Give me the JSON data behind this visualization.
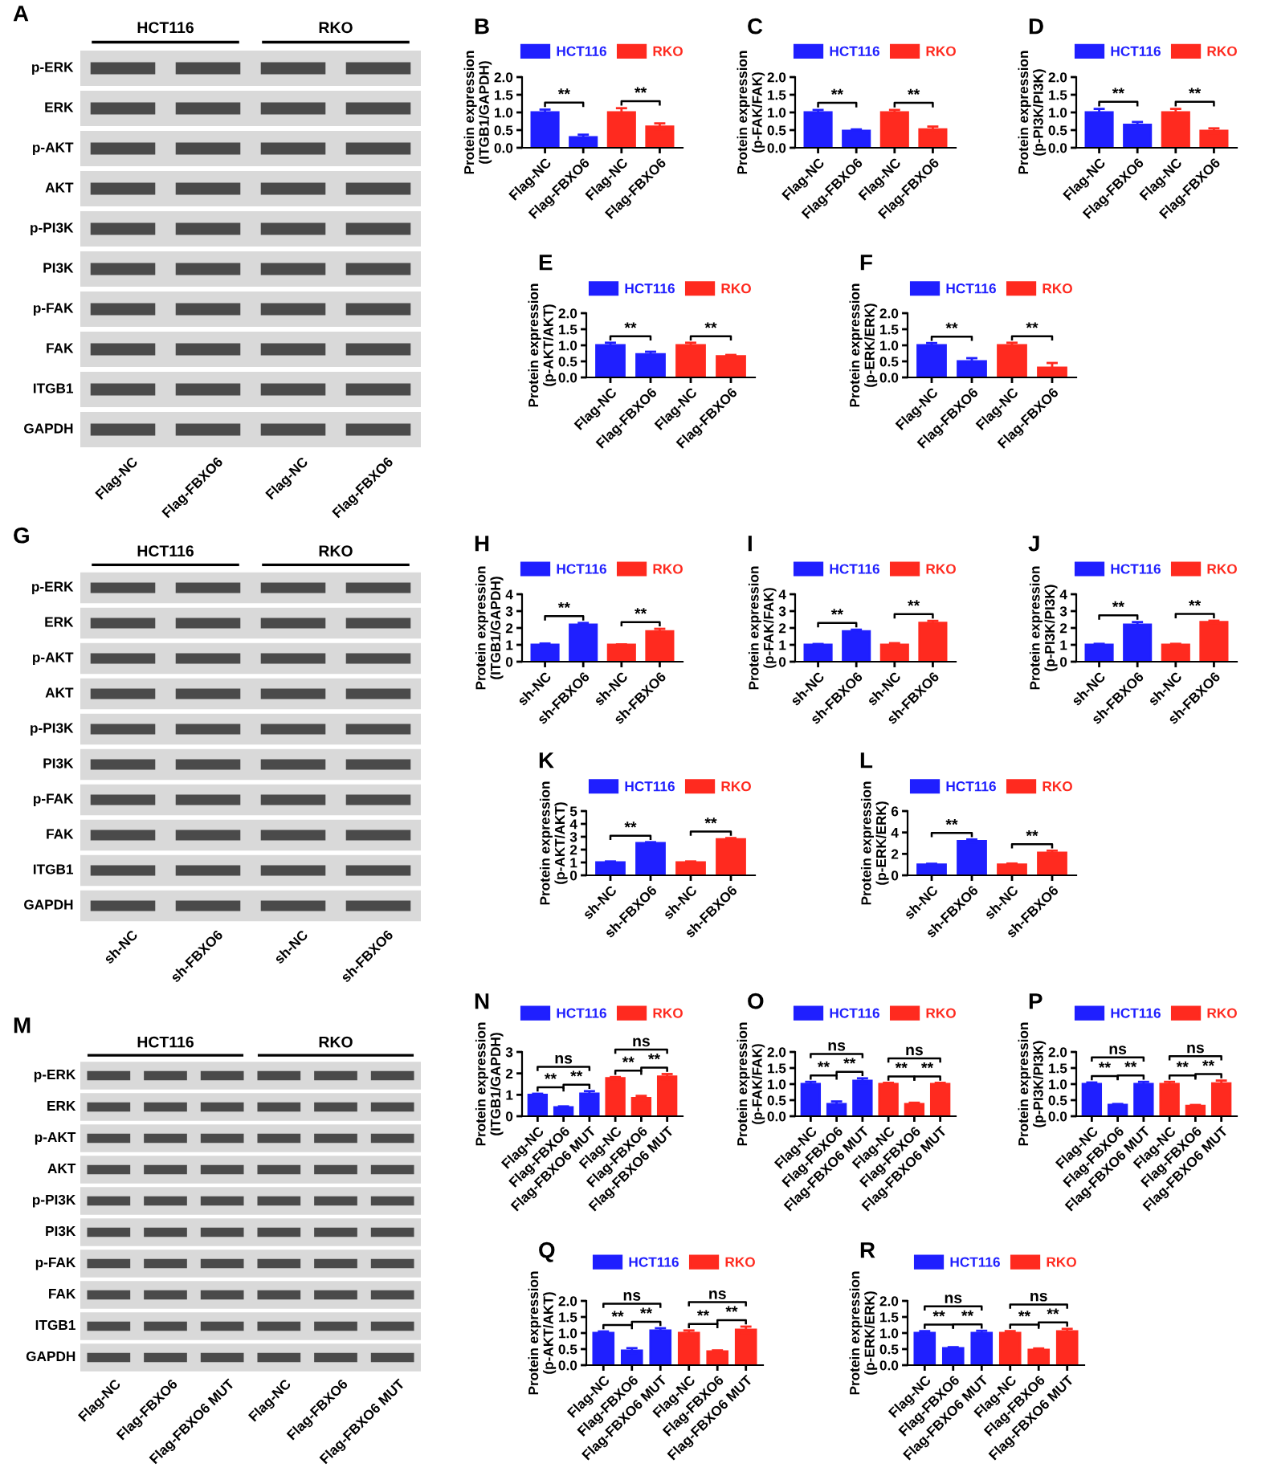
{
  "chart_data": [
    {
      "type": "other",
      "title": "A",
      "categories": [
        "Flag-NC",
        "Flag-FBXO6",
        "Flag-NC",
        "Flag-FBXO6"
      ],
      "y_categories": [
        "p-ERK",
        "ERK",
        "p-AKT",
        "AKT",
        "p-PI3K",
        "PI3K",
        "p-FAK",
        "FAK",
        "ITGB1",
        "GAPDH"
      ],
      "annotations": [
        "HCT116",
        "RKO"
      ]
    },
    {
      "type": "bar",
      "title": "B",
      "ylabel": "Protein expression\n(ITGB1/GAPDH)",
      "categories": [
        "Flag-NC",
        "Flag-FBXO6",
        "Flag-NC",
        "Flag-FBXO6"
      ],
      "legend": "top",
      "ylim": [
        0,
        2
      ],
      "yticks": [
        {
          "value": 0,
          "label": "0.0"
        },
        {
          "value": 0.5,
          "label": "0.5"
        },
        {
          "value": 1,
          "label": "1.0"
        },
        {
          "value": 1.5,
          "label": "1.5"
        },
        {
          "value": 2,
          "label": "2.0"
        }
      ],
      "annotations": [
        "**",
        "**"
      ],
      "series": [
        {
          "name": "HCT116",
          "color": "#1f1fff",
          "values": [
            1.0,
            0.3,
            null,
            null
          ],
          "errors": [
            0.08,
            0.07,
            null,
            null
          ]
        },
        {
          "name": "RKO",
          "color": "#ff2a1f",
          "values": [
            null,
            null,
            1.0,
            0.6
          ],
          "errors": [
            null,
            null,
            0.12,
            0.09
          ]
        }
      ]
    },
    {
      "type": "bar",
      "title": "C",
      "ylabel": "Protein expression\n(p-FAK/FAK)",
      "categories": [
        "Flag-NC",
        "Flag-FBXO6",
        "Flag-NC",
        "Flag-FBXO6"
      ],
      "legend": "top",
      "ylim": [
        0,
        2
      ],
      "yticks": [
        {
          "value": 0,
          "label": "0.0"
        },
        {
          "value": 0.5,
          "label": "0.5"
        },
        {
          "value": 1,
          "label": "1.0"
        },
        {
          "value": 1.5,
          "label": "1.5"
        },
        {
          "value": 2,
          "label": "2.0"
        }
      ],
      "annotations": [
        "**",
        "**"
      ],
      "series": [
        {
          "name": "HCT116",
          "color": "#1f1fff",
          "values": [
            1.0,
            0.48,
            null,
            null
          ],
          "errors": [
            0.07,
            0.04,
            null,
            null
          ]
        },
        {
          "name": "RKO",
          "color": "#ff2a1f",
          "values": [
            null,
            null,
            1.0,
            0.52
          ],
          "errors": [
            null,
            null,
            0.07,
            0.08
          ]
        }
      ]
    },
    {
      "type": "bar",
      "title": "D",
      "ylabel": "Protein expression\n(p-PI3K/PI3K)",
      "categories": [
        "Flag-NC",
        "Flag-FBXO6",
        "Flag-NC",
        "Flag-FBXO6"
      ],
      "legend": "top",
      "ylim": [
        0,
        2
      ],
      "yticks": [
        {
          "value": 0,
          "label": "0.0"
        },
        {
          "value": 0.5,
          "label": "0.5"
        },
        {
          "value": 1,
          "label": "1.0"
        },
        {
          "value": 1.5,
          "label": "1.5"
        },
        {
          "value": 2,
          "label": "2.0"
        }
      ],
      "annotations": [
        "**",
        "**"
      ],
      "series": [
        {
          "name": "HCT116",
          "color": "#1f1fff",
          "values": [
            1.0,
            0.65,
            null,
            null
          ],
          "errors": [
            0.1,
            0.08,
            null,
            null
          ]
        },
        {
          "name": "RKO",
          "color": "#ff2a1f",
          "values": [
            null,
            null,
            1.0,
            0.48
          ],
          "errors": [
            null,
            null,
            0.1,
            0.07
          ]
        }
      ]
    },
    {
      "type": "bar",
      "title": "E",
      "ylabel": "Protein expression\n(p-AKT/AKT)",
      "categories": [
        "Flag-NC",
        "Flag-FBXO6",
        "Flag-NC",
        "Flag-FBXO6"
      ],
      "legend": "top",
      "ylim": [
        0,
        2
      ],
      "yticks": [
        {
          "value": 0,
          "label": "0.0"
        },
        {
          "value": 0.5,
          "label": "0.5"
        },
        {
          "value": 1,
          "label": "1.0"
        },
        {
          "value": 1.5,
          "label": "1.5"
        },
        {
          "value": 2,
          "label": "2.0"
        }
      ],
      "annotations": [
        "**",
        "**"
      ],
      "series": [
        {
          "name": "HCT116",
          "color": "#1f1fff",
          "values": [
            1.0,
            0.72,
            null,
            null
          ],
          "errors": [
            0.08,
            0.08,
            null,
            null
          ]
        },
        {
          "name": "RKO",
          "color": "#ff2a1f",
          "values": [
            null,
            null,
            1.0,
            0.66
          ],
          "errors": [
            null,
            null,
            0.08,
            0.04
          ]
        }
      ]
    },
    {
      "type": "bar",
      "title": "F",
      "ylabel": "Protein expression\n(p-ERK/ERK)",
      "categories": [
        "Flag-NC",
        "Flag-FBXO6",
        "Flag-NC",
        "Flag-FBXO6"
      ],
      "legend": "top",
      "ylim": [
        0,
        2
      ],
      "yticks": [
        {
          "value": 0,
          "label": "0.0"
        },
        {
          "value": 0.5,
          "label": "0.5"
        },
        {
          "value": 1,
          "label": "1.0"
        },
        {
          "value": 1.5,
          "label": "1.5"
        },
        {
          "value": 2,
          "label": "2.0"
        }
      ],
      "annotations": [
        "**",
        "**"
      ],
      "series": [
        {
          "name": "HCT116",
          "color": "#1f1fff",
          "values": [
            1.0,
            0.5,
            null,
            null
          ],
          "errors": [
            0.07,
            0.1,
            null,
            null
          ]
        },
        {
          "name": "RKO",
          "color": "#ff2a1f",
          "values": [
            null,
            null,
            1.0,
            0.3
          ],
          "errors": [
            null,
            null,
            0.08,
            0.15
          ]
        }
      ]
    },
    {
      "type": "other",
      "title": "G",
      "categories": [
        "sh-NC",
        "sh-FBXO6",
        "sh-NC",
        "sh-FBXO6"
      ],
      "y_categories": [
        "p-ERK",
        "ERK",
        "p-AKT",
        "AKT",
        "p-PI3K",
        "PI3K",
        "p-FAK",
        "FAK",
        "ITGB1",
        "GAPDH"
      ],
      "annotations": [
        "HCT116",
        "RKO"
      ]
    },
    {
      "type": "bar",
      "title": "H",
      "ylabel": "Protein expression\n(ITGB1/GAPDH)",
      "categories": [
        "sh-NC",
        "sh-FBXO6",
        "sh-NC",
        "sh-FBXO6"
      ],
      "legend": "top",
      "ylim": [
        0,
        4
      ],
      "yticks": [
        0,
        1,
        2,
        3,
        4
      ],
      "annotations": [
        "**",
        "**"
      ],
      "series": [
        {
          "name": "HCT116",
          "color": "#1f1fff",
          "values": [
            1.0,
            2.2,
            null,
            null
          ],
          "errors": [
            0.08,
            0.1,
            null,
            null
          ]
        },
        {
          "name": "RKO",
          "color": "#ff2a1f",
          "values": [
            null,
            null,
            1.0,
            1.8
          ],
          "errors": [
            null,
            null,
            0.03,
            0.15
          ]
        }
      ]
    },
    {
      "type": "bar",
      "title": "I",
      "ylabel": "Protein expression\n(p-FAK/FAK)",
      "categories": [
        "sh-NC",
        "sh-FBXO6",
        "sh-NC",
        "sh-FBXO6"
      ],
      "legend": "top",
      "ylim": [
        0,
        4
      ],
      "yticks": [
        0,
        1,
        2,
        3,
        4
      ],
      "annotations": [
        "**",
        "**"
      ],
      "series": [
        {
          "name": "HCT116",
          "color": "#1f1fff",
          "values": [
            1.0,
            1.8,
            null,
            null
          ],
          "errors": [
            0.05,
            0.1,
            null,
            null
          ]
        },
        {
          "name": "RKO",
          "color": "#ff2a1f",
          "values": [
            null,
            null,
            1.0,
            2.3
          ],
          "errors": [
            null,
            null,
            0.1,
            0.12
          ]
        }
      ]
    },
    {
      "type": "bar",
      "title": "J",
      "ylabel": "Protein expression\n(p-PI3K/PI3K)",
      "categories": [
        "sh-NC",
        "sh-FBXO6",
        "sh-NC",
        "sh-FBXO6"
      ],
      "legend": "top",
      "ylim": [
        0,
        4
      ],
      "yticks": [
        0,
        1,
        2,
        3,
        4
      ],
      "annotations": [
        "**",
        "**"
      ],
      "series": [
        {
          "name": "HCT116",
          "color": "#1f1fff",
          "values": [
            1.0,
            2.2,
            null,
            null
          ],
          "errors": [
            0.06,
            0.15,
            null,
            null
          ]
        },
        {
          "name": "RKO",
          "color": "#ff2a1f",
          "values": [
            null,
            null,
            1.0,
            2.35
          ],
          "errors": [
            null,
            null,
            0.06,
            0.08
          ]
        }
      ]
    },
    {
      "type": "bar",
      "title": "K",
      "ylabel": "Protein expression\n(p-AKT/AKT)",
      "categories": [
        "sh-NC",
        "sh-FBXO6",
        "sh-NC",
        "sh-FBXO6"
      ],
      "legend": "top",
      "ylim": [
        0,
        5
      ],
      "yticks": [
        0,
        1,
        2,
        3,
        4,
        5
      ],
      "annotations": [
        "**",
        "**"
      ],
      "series": [
        {
          "name": "HCT116",
          "color": "#1f1fff",
          "values": [
            1.0,
            2.5,
            null,
            null
          ],
          "errors": [
            0.08,
            0.08,
            null,
            null
          ]
        },
        {
          "name": "RKO",
          "color": "#ff2a1f",
          "values": [
            null,
            null,
            1.0,
            2.8
          ],
          "errors": [
            null,
            null,
            0.08,
            0.1
          ]
        }
      ]
    },
    {
      "type": "bar",
      "title": "L",
      "ylabel": "Protein expression\n(p-ERK/ERK)",
      "categories": [
        "sh-NC",
        "sh-FBXO6",
        "sh-NC",
        "sh-FBXO6"
      ],
      "legend": "top",
      "ylim": [
        0,
        6
      ],
      "yticks": [
        0,
        2,
        4,
        6
      ],
      "annotations": [
        "**",
        "**"
      ],
      "series": [
        {
          "name": "HCT116",
          "color": "#1f1fff",
          "values": [
            1.0,
            3.2,
            null,
            null
          ],
          "errors": [
            0.08,
            0.15,
            null,
            null
          ]
        },
        {
          "name": "RKO",
          "color": "#ff2a1f",
          "values": [
            null,
            null,
            1.0,
            2.1
          ],
          "errors": [
            null,
            null,
            0.1,
            0.2
          ]
        }
      ]
    },
    {
      "type": "other",
      "title": "M",
      "categories": [
        "Flag-NC",
        "Flag-FBXO6",
        "Flag-FBXO6 MUT",
        "Flag-NC",
        "Flag-FBXO6",
        "Flag-FBXO6 MUT"
      ],
      "y_categories": [
        "p-ERK",
        "ERK",
        "p-AKT",
        "AKT",
        "p-PI3K",
        "PI3K",
        "p-FAK",
        "FAK",
        "ITGB1",
        "GAPDH"
      ],
      "annotations": [
        "HCT116",
        "RKO"
      ]
    },
    {
      "type": "bar",
      "title": "N",
      "ylabel": "Protein expression\n(ITGB1/GAPDH)",
      "categories": [
        "Flag-NC",
        "Flag-FBXO6",
        "Flag-FBXO6 MUT",
        "Flag-NC",
        "Flag-FBXO6",
        "Flag-FBXO6 MUT"
      ],
      "legend": "top",
      "ylim": [
        0,
        3
      ],
      "yticks": [
        0,
        1,
        2,
        3
      ],
      "annotations": [
        "ns",
        "**",
        "**",
        "ns",
        "**",
        "**"
      ],
      "series": [
        {
          "name": "HCT116",
          "color": "#1f1fff",
          "values": [
            1.0,
            0.42,
            1.05,
            null,
            null,
            null
          ],
          "errors": [
            0.05,
            0.04,
            0.12,
            null,
            null,
            null
          ]
        },
        {
          "name": "RKO",
          "color": "#ff2a1f",
          "values": [
            null,
            null,
            null,
            1.78,
            0.85,
            1.85
          ],
          "errors": [
            null,
            null,
            null,
            0.05,
            0.1,
            0.12
          ]
        }
      ]
    },
    {
      "type": "bar",
      "title": "O",
      "ylabel": "Protein expression\n(p-FAK/FAK)",
      "categories": [
        "Flag-NC",
        "Flag-FBXO6",
        "Flag-FBXO6 MUT",
        "Flag-NC",
        "Flag-FBXO6",
        "Flag-FBXO6 MUT"
      ],
      "legend": "top",
      "ylim": [
        0,
        2
      ],
      "yticks": [
        {
          "value": 0,
          "label": "0.0"
        },
        {
          "value": 0.5,
          "label": "0.5"
        },
        {
          "value": 1,
          "label": "1.0"
        },
        {
          "value": 1.5,
          "label": "1.5"
        },
        {
          "value": 2,
          "label": "2.0"
        }
      ],
      "annotations": [
        "ns",
        "**",
        "**",
        "ns",
        "**",
        "**"
      ],
      "series": [
        {
          "name": "HCT116",
          "color": "#1f1fff",
          "values": [
            1.0,
            0.38,
            1.1,
            null,
            null,
            null
          ],
          "errors": [
            0.07,
            0.08,
            0.08,
            null,
            null,
            null
          ]
        },
        {
          "name": "RKO",
          "color": "#ff2a1f",
          "values": [
            null,
            null,
            null,
            1.0,
            0.38,
            1.0
          ],
          "errors": [
            null,
            null,
            null,
            0.04,
            0.04,
            0.04
          ]
        }
      ]
    },
    {
      "type": "bar",
      "title": "P",
      "ylabel": "Protein expression\n(p-PI3K/PI3K)",
      "categories": [
        "Flag-NC",
        "Flag-FBXO6",
        "Flag-FBXO6 MUT",
        "Flag-NC",
        "Flag-FBXO6",
        "Flag-FBXO6 MUT"
      ],
      "legend": "top",
      "ylim": [
        0,
        2
      ],
      "yticks": [
        {
          "value": 0,
          "label": "0.0"
        },
        {
          "value": 0.5,
          "label": "0.5"
        },
        {
          "value": 1,
          "label": "1.0"
        },
        {
          "value": 1.5,
          "label": "1.5"
        },
        {
          "value": 2,
          "label": "2.0"
        }
      ],
      "annotations": [
        "ns",
        "**",
        "**",
        "ns",
        "**",
        "**"
      ],
      "series": [
        {
          "name": "HCT116",
          "color": "#1f1fff",
          "values": [
            1.0,
            0.35,
            1.0,
            null,
            null,
            null
          ],
          "errors": [
            0.05,
            0.03,
            0.07,
            null,
            null,
            null
          ]
        },
        {
          "name": "RKO",
          "color": "#ff2a1f",
          "values": [
            null,
            null,
            null,
            1.0,
            0.32,
            1.02
          ],
          "errors": [
            null,
            null,
            null,
            0.07,
            0.03,
            0.09
          ]
        }
      ]
    },
    {
      "type": "bar",
      "title": "Q",
      "ylabel": "Protein expression\n(p-AKT/AKT)",
      "categories": [
        "Flag-NC",
        "Flag-FBXO6",
        "Flag-FBXO6 MUT",
        "Flag-NC",
        "Flag-FBXO6",
        "Flag-FBXO6 MUT"
      ],
      "legend": "top",
      "ylim": [
        0,
        2
      ],
      "yticks": [
        {
          "value": 0,
          "label": "0.0"
        },
        {
          "value": 0.5,
          "label": "0.5"
        },
        {
          "value": 1,
          "label": "1.0"
        },
        {
          "value": 1.5,
          "label": "1.5"
        },
        {
          "value": 2,
          "label": "2.0"
        }
      ],
      "annotations": [
        "ns",
        "**",
        "**",
        "ns",
        "**",
        "**"
      ],
      "series": [
        {
          "name": "HCT116",
          "color": "#1f1fff",
          "values": [
            1.0,
            0.45,
            1.08,
            null,
            null,
            null
          ],
          "errors": [
            0.05,
            0.08,
            0.07,
            null,
            null,
            null
          ]
        },
        {
          "name": "RKO",
          "color": "#ff2a1f",
          "values": [
            null,
            null,
            null,
            1.0,
            0.43,
            1.1
          ],
          "errors": [
            null,
            null,
            null,
            0.08,
            0.03,
            0.1
          ]
        }
      ]
    },
    {
      "type": "bar",
      "title": "R",
      "ylabel": "Protein expression\n(p-ERK/ERK)",
      "categories": [
        "Flag-NC",
        "Flag-FBXO6",
        "Flag-FBXO6 MUT",
        "Flag-NC",
        "Flag-FBXO6",
        "Flag-FBXO6 MUT"
      ],
      "legend": "top",
      "ylim": [
        0,
        2
      ],
      "yticks": [
        {
          "value": 0,
          "label": "0.0"
        },
        {
          "value": 0.5,
          "label": "0.5"
        },
        {
          "value": 1,
          "label": "1.0"
        },
        {
          "value": 1.5,
          "label": "1.5"
        },
        {
          "value": 2,
          "label": "2.0"
        }
      ],
      "annotations": [
        "ns",
        "**",
        "**",
        "ns",
        "**",
        "**"
      ],
      "series": [
        {
          "name": "HCT116",
          "color": "#1f1fff",
          "values": [
            1.0,
            0.53,
            1.0,
            null,
            null,
            null
          ],
          "errors": [
            0.06,
            0.03,
            0.07,
            null,
            null,
            null
          ]
        },
        {
          "name": "RKO",
          "color": "#ff2a1f",
          "values": [
            null,
            null,
            null,
            1.0,
            0.48,
            1.05
          ],
          "errors": [
            null,
            null,
            null,
            0.06,
            0.04,
            0.08
          ]
        }
      ]
    }
  ]
}
